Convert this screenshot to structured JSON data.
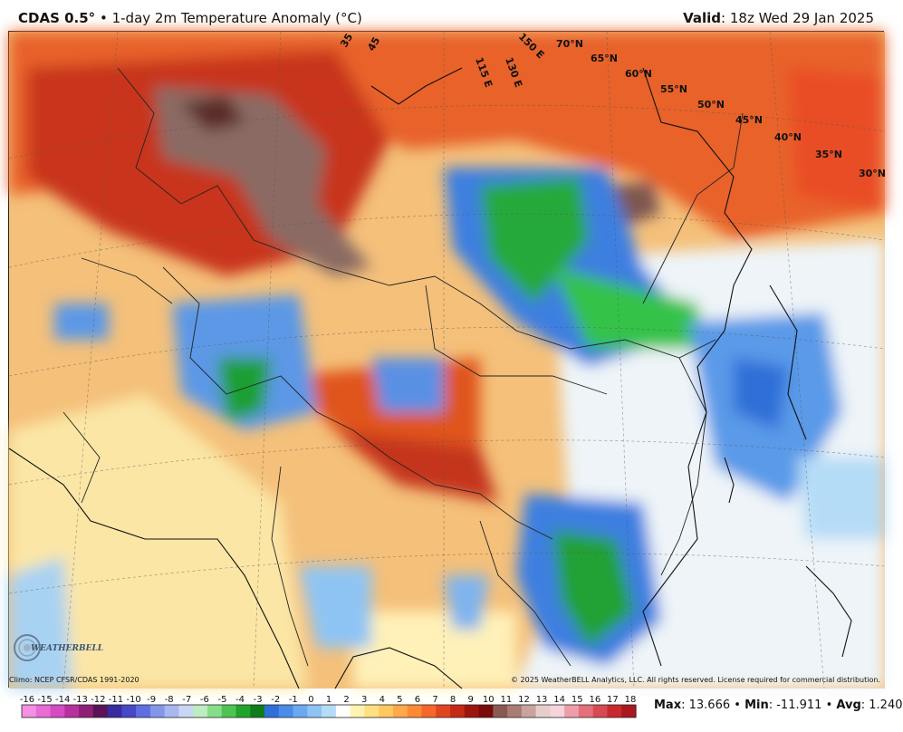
{
  "header": {
    "product": "CDAS 0.5",
    "degree": "°",
    "bullet": "•",
    "title": "1-day 2m Temperature Anomaly (°C)",
    "valid_label": "Valid",
    "valid_time": ": 18z Wed 29 Jan 2025"
  },
  "credits": {
    "climo": "Climo: NCEP CFSR/CDAS 1991-2020",
    "copyright": "© 2025 WeatherBELL Analytics, LLC. All rights reserved. License required for commercial distribution.",
    "logo_text": "WEATHERBELL"
  },
  "lat_labels": [
    "70°N",
    "65°N",
    "60°N",
    "55°N",
    "50°N",
    "45°N",
    "40°N",
    "35°N",
    "30°N"
  ],
  "lon_labels": [
    "35",
    "45",
    "115 E",
    "130 E",
    "150 E"
  ],
  "colorbar": {
    "ticks": [
      "-16",
      "-15",
      "-14",
      "-13",
      "-12",
      "-11",
      "-10",
      "-9",
      "-8",
      "-7",
      "-6",
      "-5",
      "-4",
      "-3",
      "-2",
      "-1",
      "0",
      "1",
      "2",
      "3",
      "4",
      "5",
      "6",
      "7",
      "8",
      "9",
      "10",
      "11",
      "12",
      "13",
      "14",
      "15",
      "16",
      "17",
      "18"
    ],
    "colors": [
      "#f48fe4",
      "#e86bd6",
      "#d44bc2",
      "#b8309e",
      "#8e1f76",
      "#5a1456",
      "#3a2aa0",
      "#4648c8",
      "#5f6fe0",
      "#8496ea",
      "#a8b7f0",
      "#c9d6f5",
      "#bcecc0",
      "#86dd8a",
      "#4cc452",
      "#22a32a",
      "#0e7d1c",
      "#2f6fd8",
      "#4a8ce8",
      "#6aa9f0",
      "#8ec4f4",
      "#b5dcf7",
      "#ffffff",
      "#fff3b0",
      "#ffe080",
      "#ffc860",
      "#ffa94a",
      "#ff8a36",
      "#f5672a",
      "#e04520",
      "#c42a16",
      "#9e140e",
      "#7a0b08",
      "#8a5a52",
      "#a97c74",
      "#c9a39c",
      "#e6cfcb",
      "#f6d4dc",
      "#ee9ea8",
      "#e4707a",
      "#d84a52",
      "#c8282e",
      "#a8181e"
    ]
  },
  "stats": {
    "max_label": "Max",
    "max_value": ": 13.666",
    "min_label": "Min",
    "min_value": ": -11.911",
    "avg_label": "Avg",
    "avg_value": ": 1.240",
    "sep": "•"
  }
}
